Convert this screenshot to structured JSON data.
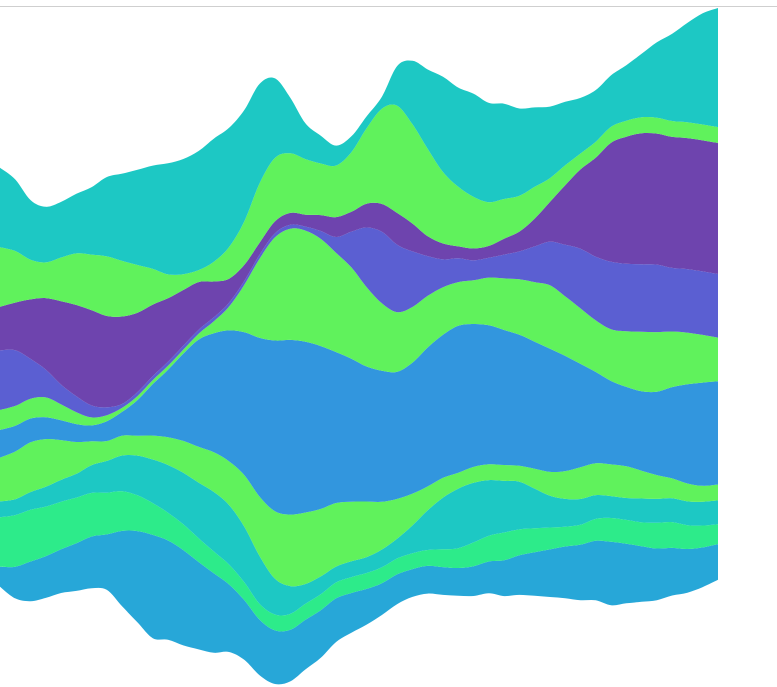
{
  "chart_data": {
    "type": "area",
    "stacking": "streamgraph",
    "baseline": "wiggle",
    "title": "",
    "xlabel": "",
    "ylabel": "",
    "axes_visible": false,
    "grid": false,
    "legend": "none",
    "x": [
      0,
      1,
      2,
      3,
      4,
      5,
      6,
      7,
      8,
      9,
      10,
      11,
      12,
      13,
      14,
      15,
      16,
      17,
      18,
      19,
      20,
      21,
      22,
      23,
      24,
      25,
      26,
      27,
      28,
      29,
      30,
      31,
      32,
      33,
      34,
      35,
      36,
      37,
      38,
      39,
      40,
      41,
      42,
      43,
      44,
      45,
      46,
      47
    ],
    "series": [
      {
        "color": "#27a7d8",
        "values": [
          10,
          16,
          20,
          21,
          22,
          24,
          26,
          28,
          38,
          46,
          52,
          50,
          48,
          44,
          40,
          34,
          30,
          28,
          27,
          26,
          25,
          24,
          22,
          20,
          18,
          16,
          15,
          14,
          14,
          14,
          14,
          15,
          16,
          18,
          20,
          22,
          24,
          26,
          28,
          30,
          32,
          30,
          28,
          26,
          24,
          22,
          20,
          18
        ]
      },
      {
        "color": "#2deb8a",
        "values": [
          25,
          26,
          26,
          25,
          24,
          23,
          22,
          21,
          20,
          18,
          16,
          14,
          13,
          12,
          11,
          10,
          9,
          8,
          8,
          8,
          8,
          8,
          8,
          8,
          8,
          8,
          8,
          8,
          8,
          9,
          10,
          12,
          13,
          14,
          13,
          12,
          11,
          10,
          10,
          11,
          12,
          12,
          12,
          13,
          13,
          12,
          11,
          10
        ]
      },
      {
        "color": "#1dc8c4",
        "values": [
          8,
          8,
          9,
          10,
          11,
          12,
          14,
          16,
          18,
          20,
          22,
          24,
          26,
          28,
          30,
          30,
          28,
          24,
          18,
          14,
          10,
          9,
          8,
          8,
          8,
          9,
          10,
          14,
          20,
          26,
          30,
          30,
          28,
          26,
          24,
          20,
          16,
          14,
          13,
          12,
          11,
          11,
          12,
          12,
          12,
          12,
          12,
          12
        ]
      },
      {
        "color": "#60f25c",
        "values": [
          22,
          24,
          25,
          24,
          20,
          16,
          12,
          10,
          10,
          10,
          12,
          14,
          16,
          18,
          20,
          22,
          26,
          30,
          34,
          36,
          36,
          34,
          32,
          30,
          28,
          24,
          20,
          16,
          12,
          10,
          8,
          8,
          8,
          8,
          8,
          10,
          12,
          14,
          16,
          16,
          16,
          16,
          14,
          12,
          10,
          9,
          8,
          8
        ]
      },
      {
        "color": "#3296de",
        "values": [
          14,
          13,
          12,
          11,
          10,
          9,
          8,
          10,
          12,
          18,
          26,
          34,
          44,
          54,
          60,
          66,
          72,
          80,
          86,
          88,
          86,
          82,
          76,
          72,
          68,
          66,
          64,
          66,
          70,
          72,
          74,
          72,
          70,
          68,
          66,
          64,
          62,
          58,
          52,
          46,
          42,
          40,
          40,
          42,
          46,
          50,
          52,
          52
        ]
      },
      {
        "color": "#60f25c",
        "values": [
          10,
          10,
          10,
          10,
          8,
          6,
          4,
          3,
          2,
          2,
          2,
          2,
          2,
          3,
          6,
          12,
          24,
          40,
          52,
          56,
          56,
          54,
          50,
          46,
          40,
          34,
          30,
          28,
          26,
          24,
          22,
          22,
          24,
          26,
          28,
          30,
          32,
          30,
          28,
          26,
          26,
          28,
          30,
          30,
          28,
          26,
          24,
          22
        ]
      },
      {
        "color": "#5b5fd2",
        "values": [
          30,
          28,
          20,
          14,
          10,
          8,
          6,
          4,
          2,
          2,
          2,
          2,
          2,
          2,
          2,
          2,
          2,
          2,
          2,
          2,
          2,
          4,
          8,
          18,
          30,
          36,
          34,
          28,
          20,
          14,
          12,
          10,
          10,
          12,
          14,
          18,
          22,
          26,
          30,
          32,
          34,
          34,
          34,
          34,
          32,
          32,
          32,
          32
        ]
      },
      {
        "color": "#6e44ae",
        "values": [
          22,
          24,
          30,
          36,
          42,
          46,
          48,
          46,
          44,
          40,
          36,
          32,
          28,
          24,
          18,
          12,
          8,
          6,
          6,
          6,
          6,
          8,
          10,
          10,
          12,
          14,
          16,
          14,
          10,
          8,
          6,
          6,
          6,
          8,
          10,
          14,
          20,
          30,
          40,
          50,
          60,
          64,
          66,
          66,
          66,
          66,
          66,
          66
        ]
      },
      {
        "color": "#60f25c",
        "values": [
          30,
          26,
          20,
          18,
          22,
          26,
          28,
          30,
          28,
          24,
          18,
          12,
          8,
          6,
          10,
          16,
          22,
          30,
          32,
          30,
          28,
          26,
          26,
          30,
          38,
          48,
          54,
          50,
          44,
          36,
          30,
          26,
          22,
          20,
          18,
          16,
          12,
          10,
          8,
          8,
          8,
          8,
          8,
          8,
          8,
          8,
          8,
          8
        ]
      },
      {
        "color": "#1dc8c4",
        "values": [
          40,
          36,
          30,
          28,
          28,
          30,
          34,
          40,
          44,
          48,
          52,
          56,
          58,
          60,
          62,
          60,
          56,
          50,
          40,
          28,
          18,
          14,
          10,
          8,
          6,
          6,
          20,
          32,
          40,
          48,
          50,
          52,
          50,
          48,
          44,
          40,
          36,
          32,
          28,
          26,
          26,
          28,
          32,
          38,
          44,
          50,
          56,
          60
        ]
      }
    ]
  }
}
